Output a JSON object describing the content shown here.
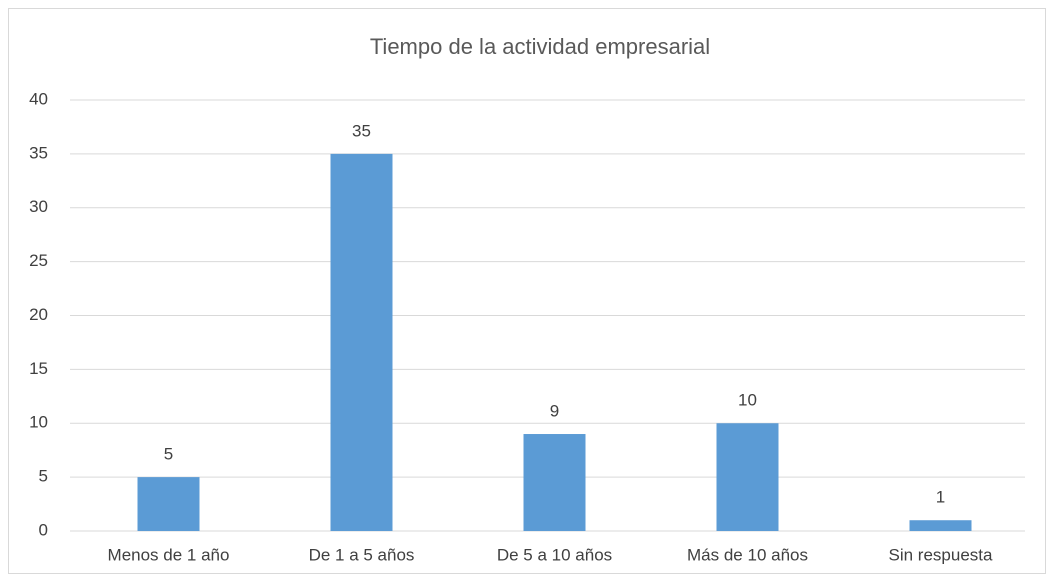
{
  "chart_data": {
    "type": "bar",
    "title": "Tiempo de la actividad empresarial",
    "categories": [
      "Menos de 1 año",
      "De 1 a 5 años",
      "De 5 a 10 años",
      "Más de 10 años",
      "Sin respuesta"
    ],
    "values": [
      5,
      35,
      9,
      10,
      1
    ],
    "color": "#5b9bd5",
    "ylim": [
      0,
      40
    ],
    "yticks": [
      0,
      5,
      10,
      15,
      20,
      25,
      30,
      35,
      40
    ],
    "grid": true
  }
}
